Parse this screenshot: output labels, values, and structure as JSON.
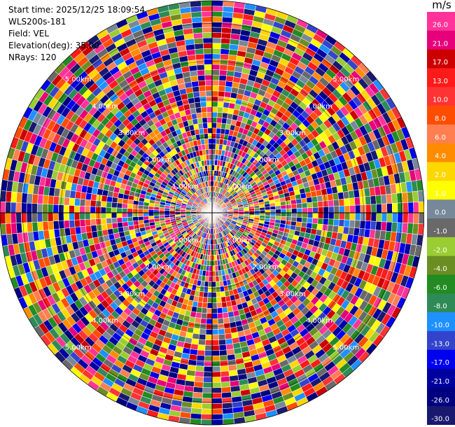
{
  "info": {
    "start_time": "Start time: 2025/12/25 18:09:54",
    "station": "WLS200s-181",
    "field": "Field: VEL",
    "elevation": "Elevation(deg): 35.00",
    "nrays": "NRays: 120"
  },
  "chart_data": {
    "type": "heatmap",
    "subtype": "polar-ppi",
    "field": "VEL",
    "nrays": 120,
    "range_rings_km": [
      1.0,
      2.0,
      3.0,
      4.0,
      5.0
    ],
    "range_ring_labels": [
      "1.00km",
      "2.00km",
      "3.00km",
      "4.00km",
      "5.00km"
    ],
    "colorbar": {
      "unit": "m/s",
      "ticks": [
        "26.0",
        "21.0",
        "17.0",
        "13.0",
        "10.0",
        "8.0",
        "6.0",
        "4.0",
        "2.0",
        "1.0",
        "0.0",
        "-1.0",
        "-2.0",
        "-4.0",
        "-6.0",
        "-8.0",
        "-10.0",
        "-13.0",
        "-17.0",
        "-21.0",
        "-26.0",
        "-30.0"
      ],
      "colors": [
        "#ff3399",
        "#e6007a",
        "#cc0000",
        "#ff1a1a",
        "#ff3333",
        "#ff4d00",
        "#ff7f50",
        "#ff8c00",
        "#ffd700",
        "#ffff00",
        "#778899",
        "#696969",
        "#9acd32",
        "#6b8e23",
        "#228b22",
        "#2e8b57",
        "#1e90ff",
        "#3344cc",
        "#0000ee",
        "#0000a0",
        "#000080",
        "#191970"
      ]
    }
  }
}
